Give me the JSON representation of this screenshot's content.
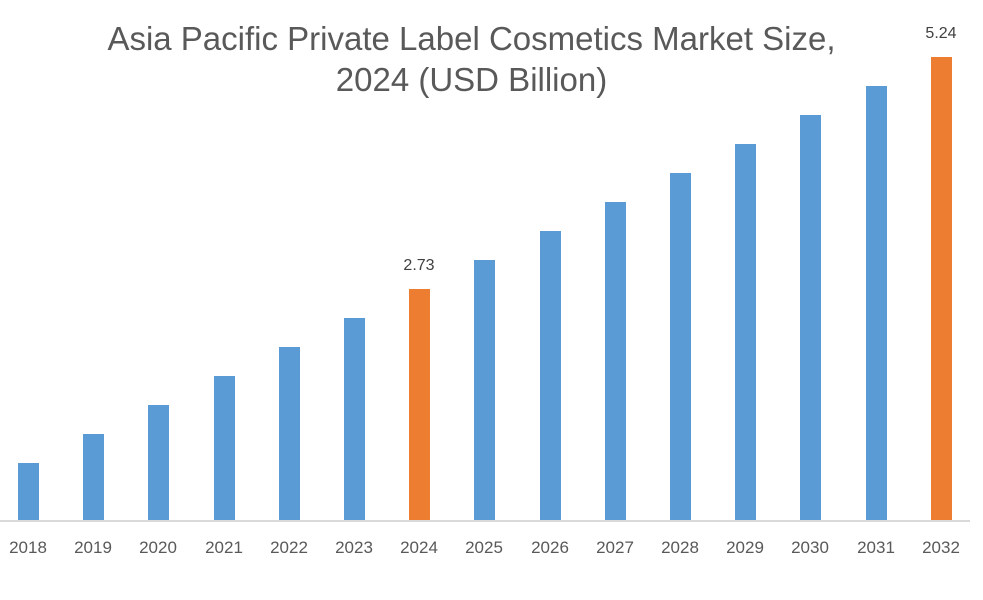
{
  "chart_data": {
    "type": "bar",
    "title": "Asia Pacific Private Label Cosmetics Market Size, 2024 (USD Billion)",
    "title_lines": [
      "Asia Pacific Private Label Cosmetics Market Size,",
      "2024 (USD Billion)"
    ],
    "xlabel": "",
    "ylabel": "",
    "categories": [
      "2018",
      "2019",
      "2020",
      "2021",
      "2022",
      "2023",
      "2024",
      "2025",
      "2026",
      "2027",
      "2028",
      "2029",
      "2030",
      "2031",
      "2032"
    ],
    "values": [
      0.85,
      1.16,
      1.48,
      1.79,
      2.1,
      2.42,
      2.73,
      3.04,
      3.36,
      3.67,
      3.99,
      4.3,
      4.61,
      4.93,
      5.24
    ],
    "highlight": {
      "2024": "2.73",
      "2032": "5.24"
    },
    "colors": {
      "default": "#5b9bd5",
      "highlight": "#ed7d31"
    },
    "grid": false,
    "legend": null,
    "ylim": [
      0,
      5.5
    ]
  }
}
